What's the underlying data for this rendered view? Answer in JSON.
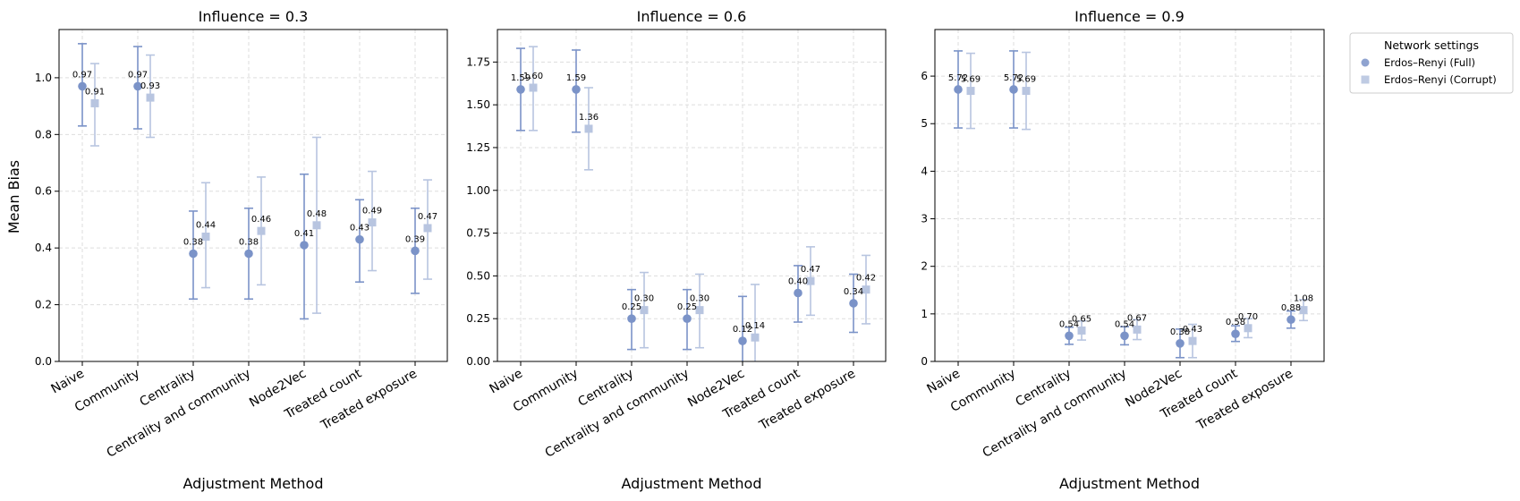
{
  "figure": {
    "ylabel": "Mean Bias"
  },
  "legend": {
    "title": "Network settings",
    "placement": "outside-right-top",
    "entries": [
      {
        "label": "Erdos–Renyi (Full)",
        "marker": "circle"
      },
      {
        "label": "Erdos–Renyi (Corrupt)",
        "marker": "square"
      }
    ]
  },
  "colors": {
    "full": "#7b93c8",
    "corrupt": "#b8c5e0",
    "grid": "#dddddd",
    "axis": "#000000"
  },
  "chart_data": [
    {
      "type": "scatter",
      "title": "Influence = 0.3",
      "xlabel": "Adjustment Method",
      "ylabel": "Mean Bias",
      "categories": [
        "Naive",
        "Community",
        "Centrality",
        "Centrality and community",
        "Node2Vec",
        "Treated count",
        "Treated exposure"
      ],
      "ylim": [
        0,
        1.17
      ],
      "yticks": [
        "0.0",
        "0.2",
        "0.4",
        "0.6",
        "0.8",
        "1.0"
      ],
      "grid": true,
      "series": [
        {
          "name": "Erdos–Renyi (Full)",
          "values": [
            0.97,
            0.97,
            0.38,
            0.38,
            0.41,
            0.43,
            0.39
          ],
          "err_low": [
            0.83,
            0.82,
            0.22,
            0.22,
            0.15,
            0.28,
            0.24
          ],
          "err_high": [
            1.12,
            1.11,
            0.53,
            0.54,
            0.66,
            0.57,
            0.54
          ],
          "labels": [
            "0.97",
            "0.97",
            "0.38",
            "0.38",
            "0.41",
            "0.43",
            "0.39"
          ]
        },
        {
          "name": "Erdos–Renyi (Corrupt)",
          "values": [
            0.91,
            0.93,
            0.44,
            0.46,
            0.48,
            0.49,
            0.47
          ],
          "err_low": [
            0.76,
            0.79,
            0.26,
            0.27,
            0.17,
            0.32,
            0.29
          ],
          "err_high": [
            1.05,
            1.08,
            0.63,
            0.65,
            0.79,
            0.67,
            0.64
          ],
          "labels": [
            "0.91",
            "0.93",
            "0.44",
            "0.46",
            "0.48",
            "0.49",
            "0.47"
          ]
        }
      ]
    },
    {
      "type": "scatter",
      "title": "Influence = 0.6",
      "xlabel": "Adjustment Method",
      "ylabel": "",
      "categories": [
        "Naive",
        "Community",
        "Centrality",
        "Centrality and community",
        "Node2Vec",
        "Treated count",
        "Treated exposure"
      ],
      "ylim": [
        0,
        1.94
      ],
      "yticks": [
        "0.00",
        "0.25",
        "0.50",
        "0.75",
        "1.00",
        "1.25",
        "1.50",
        "1.75"
      ],
      "grid": true,
      "series": [
        {
          "name": "Erdos–Renyi (Full)",
          "values": [
            1.59,
            1.59,
            0.25,
            0.25,
            0.12,
            0.4,
            0.34
          ],
          "err_low": [
            1.35,
            1.34,
            0.07,
            0.07,
            -0.14,
            0.23,
            0.17
          ],
          "err_high": [
            1.83,
            1.82,
            0.42,
            0.42,
            0.38,
            0.56,
            0.51
          ],
          "labels": [
            "1.59",
            "1.59",
            "0.25",
            "0.25",
            "0.12",
            "0.40",
            "0.34"
          ]
        },
        {
          "name": "Erdos–Renyi (Corrupt)",
          "values": [
            1.6,
            1.36,
            0.3,
            0.3,
            0.14,
            0.47,
            0.42
          ],
          "err_low": [
            1.35,
            1.12,
            0.08,
            0.08,
            -0.17,
            0.27,
            0.22
          ],
          "err_high": [
            1.84,
            1.6,
            0.52,
            0.51,
            0.45,
            0.67,
            0.62
          ],
          "labels": [
            "1.60",
            "1.36",
            "0.30",
            "0.30",
            "0.14",
            "0.47",
            "0.42"
          ]
        }
      ]
    },
    {
      "type": "scatter",
      "title": "Influence = 0.9",
      "xlabel": "Adjustment Method",
      "ylabel": "",
      "categories": [
        "Naive",
        "Community",
        "Centrality",
        "Centrality and community",
        "Node2Vec",
        "Treated count",
        "Treated exposure"
      ],
      "ylim": [
        0,
        6.98
      ],
      "yticks": [
        "0",
        "1",
        "2",
        "3",
        "4",
        "5",
        "6"
      ],
      "grid": true,
      "series": [
        {
          "name": "Erdos–Renyi (Full)",
          "values": [
            5.72,
            5.72,
            0.54,
            0.54,
            0.38,
            0.58,
            0.88
          ],
          "err_low": [
            4.91,
            4.91,
            0.36,
            0.35,
            0.08,
            0.42,
            0.7
          ],
          "err_high": [
            6.53,
            6.53,
            0.72,
            0.73,
            0.68,
            0.75,
            1.06
          ],
          "labels": [
            "5.72",
            "5.72",
            "0.54",
            "0.54",
            "0.38",
            "0.58",
            "0.88"
          ]
        },
        {
          "name": "Erdos–Renyi (Corrupt)",
          "values": [
            5.69,
            5.69,
            0.65,
            0.67,
            0.43,
            0.7,
            1.08
          ],
          "err_low": [
            4.9,
            4.88,
            0.45,
            0.46,
            0.08,
            0.5,
            0.86
          ],
          "err_high": [
            6.48,
            6.5,
            0.85,
            0.88,
            0.78,
            0.9,
            1.3
          ],
          "labels": [
            "5.69",
            "5.69",
            "0.65",
            "0.67",
            "0.43",
            "0.70",
            "1.08"
          ]
        }
      ]
    }
  ]
}
